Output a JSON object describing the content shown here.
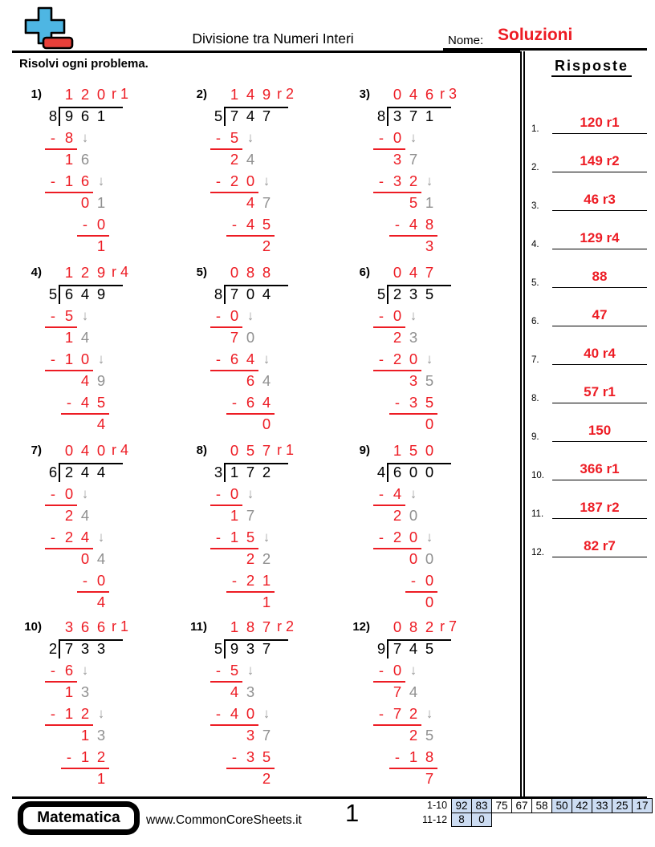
{
  "colors": {
    "red": "#ed1c24",
    "gray_digit": "#909090",
    "cell_blue": "#ccdcf2",
    "logo_blue": "#4eb6e3",
    "logo_red": "#e8403a"
  },
  "header": {
    "logo_icon": "plus-logo",
    "title": "Divisione tra Numeri Interi",
    "name_label": "Nome:",
    "name_value": "Soluzioni",
    "instruction": "Risolvi ogni problema."
  },
  "answers": {
    "title": "Risposte",
    "items": [
      {
        "num": "1.",
        "value": "120 r1"
      },
      {
        "num": "2.",
        "value": "149 r2"
      },
      {
        "num": "3.",
        "value": "46 r3"
      },
      {
        "num": "4.",
        "value": "129 r4"
      },
      {
        "num": "5.",
        "value": "88"
      },
      {
        "num": "6.",
        "value": "47"
      },
      {
        "num": "7.",
        "value": "40 r4"
      },
      {
        "num": "8.",
        "value": "57 r1"
      },
      {
        "num": "9.",
        "value": "150"
      },
      {
        "num": "10.",
        "value": "366 r1"
      },
      {
        "num": "11.",
        "value": "187 r2"
      },
      {
        "num": "12.",
        "value": "82 r7"
      }
    ]
  },
  "problems": [
    {
      "label": "1)",
      "divisor": "8",
      "dividend": "961",
      "quotient": "120",
      "rem": "r 1",
      "rows": [
        {
          "t": "sub",
          "s": 1,
          "d": "8",
          "a": true
        },
        {
          "t": "rem",
          "s": 1,
          "d": "16"
        },
        {
          "t": "sub",
          "s": 1,
          "d": "16",
          "a": true
        },
        {
          "t": "rem",
          "s": 2,
          "d": "01"
        },
        {
          "t": "sub",
          "s": 3,
          "d": "0"
        },
        {
          "t": "fin",
          "s": 3,
          "d": "1"
        }
      ]
    },
    {
      "label": "2)",
      "divisor": "5",
      "dividend": "747",
      "quotient": "149",
      "rem": "r 2",
      "rows": [
        {
          "t": "sub",
          "s": 1,
          "d": "5",
          "a": true
        },
        {
          "t": "rem",
          "s": 1,
          "d": "24"
        },
        {
          "t": "sub",
          "s": 1,
          "d": "20",
          "a": true
        },
        {
          "t": "rem",
          "s": 2,
          "d": "47"
        },
        {
          "t": "sub",
          "s": 2,
          "d": "45"
        },
        {
          "t": "fin",
          "s": 3,
          "d": "2"
        }
      ]
    },
    {
      "label": "3)",
      "divisor": "8",
      "dividend": "371",
      "quotient": "046",
      "rem": "r 3",
      "rows": [
        {
          "t": "sub",
          "s": 1,
          "d": "0",
          "a": true
        },
        {
          "t": "rem",
          "s": 1,
          "d": "37"
        },
        {
          "t": "sub",
          "s": 1,
          "d": "32",
          "a": true
        },
        {
          "t": "rem",
          "s": 2,
          "d": "51"
        },
        {
          "t": "sub",
          "s": 2,
          "d": "48"
        },
        {
          "t": "fin",
          "s": 3,
          "d": "3"
        }
      ]
    },
    {
      "label": "4)",
      "divisor": "5",
      "dividend": "649",
      "quotient": "129",
      "rem": "r 4",
      "rows": [
        {
          "t": "sub",
          "s": 1,
          "d": "5",
          "a": true
        },
        {
          "t": "rem",
          "s": 1,
          "d": "14"
        },
        {
          "t": "sub",
          "s": 1,
          "d": "10",
          "a": true
        },
        {
          "t": "rem",
          "s": 2,
          "d": "49"
        },
        {
          "t": "sub",
          "s": 2,
          "d": "45"
        },
        {
          "t": "fin",
          "s": 3,
          "d": "4"
        }
      ]
    },
    {
      "label": "5)",
      "divisor": "8",
      "dividend": "704",
      "quotient": "088",
      "rem": "",
      "rows": [
        {
          "t": "sub",
          "s": 1,
          "d": "0",
          "a": true
        },
        {
          "t": "rem",
          "s": 1,
          "d": "70"
        },
        {
          "t": "sub",
          "s": 1,
          "d": "64",
          "a": true
        },
        {
          "t": "rem",
          "s": 2,
          "d": "64"
        },
        {
          "t": "sub",
          "s": 2,
          "d": "64"
        },
        {
          "t": "fin",
          "s": 3,
          "d": "0"
        }
      ]
    },
    {
      "label": "6)",
      "divisor": "5",
      "dividend": "235",
      "quotient": "047",
      "rem": "",
      "rows": [
        {
          "t": "sub",
          "s": 1,
          "d": "0",
          "a": true
        },
        {
          "t": "rem",
          "s": 1,
          "d": "23"
        },
        {
          "t": "sub",
          "s": 1,
          "d": "20",
          "a": true
        },
        {
          "t": "rem",
          "s": 2,
          "d": "35"
        },
        {
          "t": "sub",
          "s": 2,
          "d": "35"
        },
        {
          "t": "fin",
          "s": 3,
          "d": "0"
        }
      ]
    },
    {
      "label": "7)",
      "divisor": "6",
      "dividend": "244",
      "quotient": "040",
      "rem": "r 4",
      "rows": [
        {
          "t": "sub",
          "s": 1,
          "d": "0",
          "a": true
        },
        {
          "t": "rem",
          "s": 1,
          "d": "24"
        },
        {
          "t": "sub",
          "s": 1,
          "d": "24",
          "a": true
        },
        {
          "t": "rem",
          "s": 2,
          "d": "04"
        },
        {
          "t": "sub",
          "s": 3,
          "d": "0"
        },
        {
          "t": "fin",
          "s": 3,
          "d": "4"
        }
      ]
    },
    {
      "label": "8)",
      "divisor": "3",
      "dividend": "172",
      "quotient": "057",
      "rem": "r 1",
      "rows": [
        {
          "t": "sub",
          "s": 1,
          "d": "0",
          "a": true
        },
        {
          "t": "rem",
          "s": 1,
          "d": "17"
        },
        {
          "t": "sub",
          "s": 1,
          "d": "15",
          "a": true
        },
        {
          "t": "rem",
          "s": 2,
          "d": "22"
        },
        {
          "t": "sub",
          "s": 2,
          "d": "21"
        },
        {
          "t": "fin",
          "s": 3,
          "d": "1"
        }
      ]
    },
    {
      "label": "9)",
      "divisor": "4",
      "dividend": "600",
      "quotient": "150",
      "rem": "",
      "rows": [
        {
          "t": "sub",
          "s": 1,
          "d": "4",
          "a": true
        },
        {
          "t": "rem",
          "s": 1,
          "d": "20"
        },
        {
          "t": "sub",
          "s": 1,
          "d": "20",
          "a": true
        },
        {
          "t": "rem",
          "s": 2,
          "d": "00"
        },
        {
          "t": "sub",
          "s": 3,
          "d": "0"
        },
        {
          "t": "fin",
          "s": 3,
          "d": "0"
        }
      ]
    },
    {
      "label": "10)",
      "divisor": "2",
      "dividend": "733",
      "quotient": "366",
      "rem": "r 1",
      "rows": [
        {
          "t": "sub",
          "s": 1,
          "d": "6",
          "a": true
        },
        {
          "t": "rem",
          "s": 1,
          "d": "13"
        },
        {
          "t": "sub",
          "s": 1,
          "d": "12",
          "a": true
        },
        {
          "t": "rem",
          "s": 2,
          "d": "13"
        },
        {
          "t": "sub",
          "s": 2,
          "d": "12"
        },
        {
          "t": "fin",
          "s": 3,
          "d": "1"
        }
      ]
    },
    {
      "label": "11)",
      "divisor": "5",
      "dividend": "937",
      "quotient": "187",
      "rem": "r 2",
      "rows": [
        {
          "t": "sub",
          "s": 1,
          "d": "5",
          "a": true
        },
        {
          "t": "rem",
          "s": 1,
          "d": "43"
        },
        {
          "t": "sub",
          "s": 1,
          "d": "40",
          "a": true
        },
        {
          "t": "rem",
          "s": 2,
          "d": "37"
        },
        {
          "t": "sub",
          "s": 2,
          "d": "35"
        },
        {
          "t": "fin",
          "s": 3,
          "d": "2"
        }
      ]
    },
    {
      "label": "12)",
      "divisor": "9",
      "dividend": "745",
      "quotient": "082",
      "rem": "r 7",
      "rows": [
        {
          "t": "sub",
          "s": 1,
          "d": "0",
          "a": true
        },
        {
          "t": "rem",
          "s": 1,
          "d": "74"
        },
        {
          "t": "sub",
          "s": 1,
          "d": "72",
          "a": true
        },
        {
          "t": "rem",
          "s": 2,
          "d": "25"
        },
        {
          "t": "sub",
          "s": 2,
          "d": "18"
        },
        {
          "t": "fin",
          "s": 3,
          "d": "7"
        }
      ]
    }
  ],
  "footer": {
    "brand": "Matematica",
    "site": "www.CommonCoreSheets.it",
    "page_number": "1",
    "score_rows": [
      {
        "label": "1-10",
        "cells": [
          {
            "v": "92",
            "hl": true
          },
          {
            "v": "83",
            "hl": true
          },
          {
            "v": "75",
            "hl": false
          },
          {
            "v": "67",
            "hl": false
          },
          {
            "v": "58",
            "hl": false
          },
          {
            "v": "50",
            "hl": true
          },
          {
            "v": "42",
            "hl": true
          },
          {
            "v": "33",
            "hl": true
          },
          {
            "v": "25",
            "hl": true
          },
          {
            "v": "17",
            "hl": true
          }
        ]
      },
      {
        "label": "11-12",
        "cells": [
          {
            "v": "8",
            "hl": true
          },
          {
            "v": "0",
            "hl": true
          }
        ]
      }
    ]
  }
}
